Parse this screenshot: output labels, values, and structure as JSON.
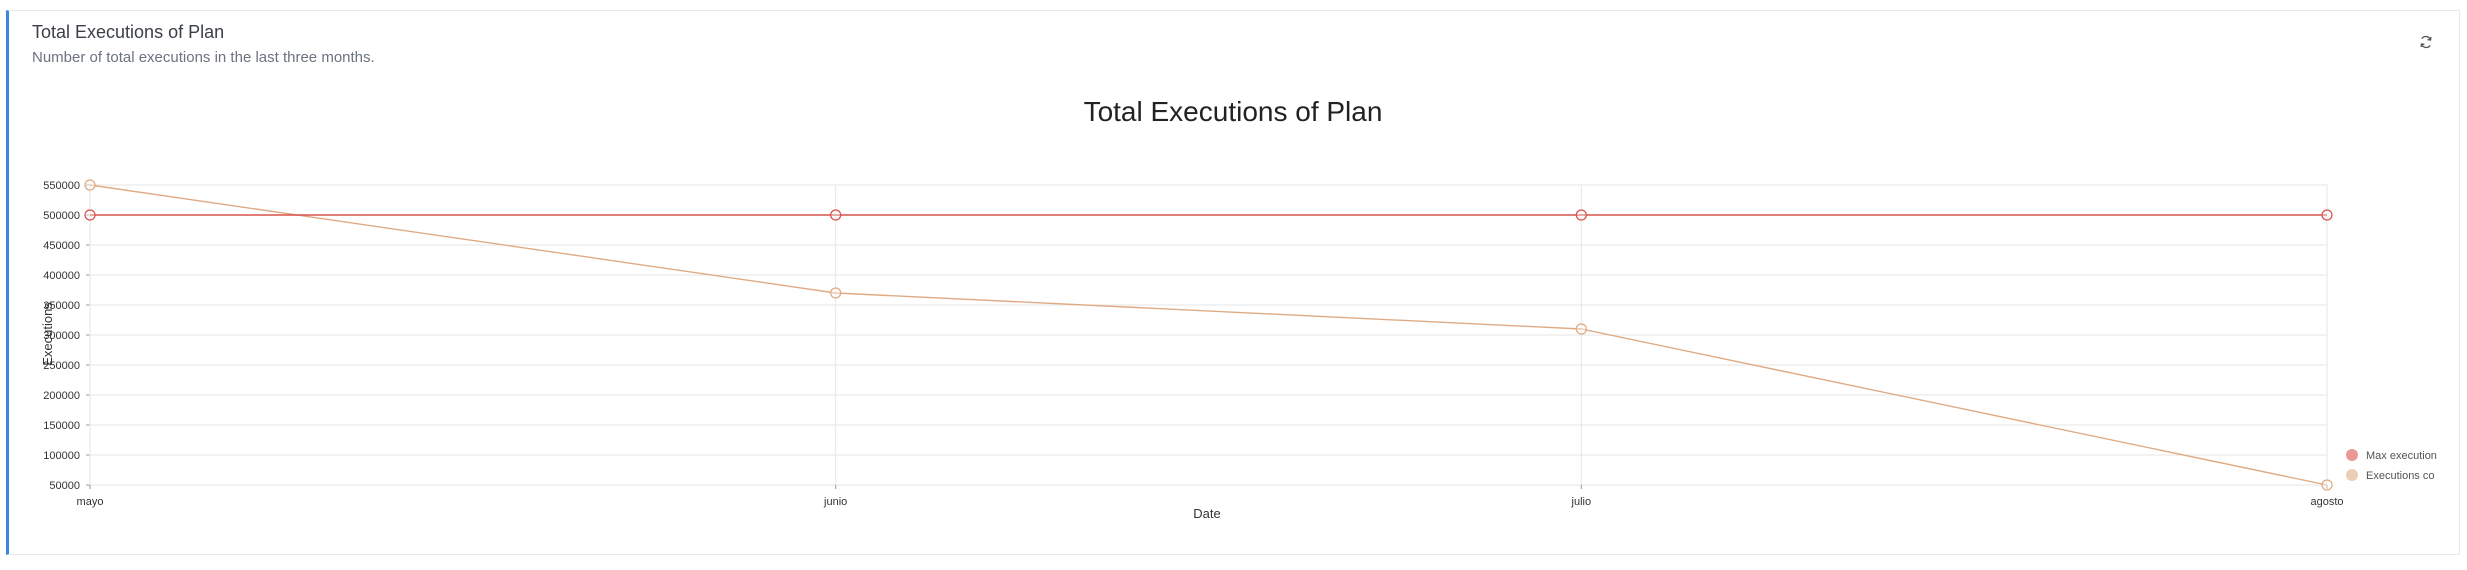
{
  "card": {
    "title": "Total Executions of Plan",
    "subtitle": "Number of total executions in the last three months.",
    "refresh_icon": "refresh-icon"
  },
  "colors": {
    "accent": "#3b86e0",
    "max_series": "#d9534f",
    "count_series": "#e0ab84",
    "grid": "#e6e6e6"
  },
  "chart_data": {
    "type": "line",
    "title": "Total Executions of Plan",
    "xlabel": "Date",
    "ylabel": "Executions",
    "categories": [
      "mayo",
      "junio",
      "julio",
      "agosto"
    ],
    "yticks": [
      50000,
      100000,
      150000,
      200000,
      250000,
      300000,
      350000,
      400000,
      450000,
      500000,
      550000
    ],
    "ylim": [
      50000,
      550000
    ],
    "grid": true,
    "legend_position": "right",
    "series": [
      {
        "name": "Max execution",
        "values": [
          500000,
          500000,
          500000,
          500000
        ],
        "color": "#d9534f"
      },
      {
        "name": "Executions co",
        "values": [
          550000,
          370000,
          310000,
          50000
        ],
        "color": "#e0ab84"
      }
    ]
  }
}
